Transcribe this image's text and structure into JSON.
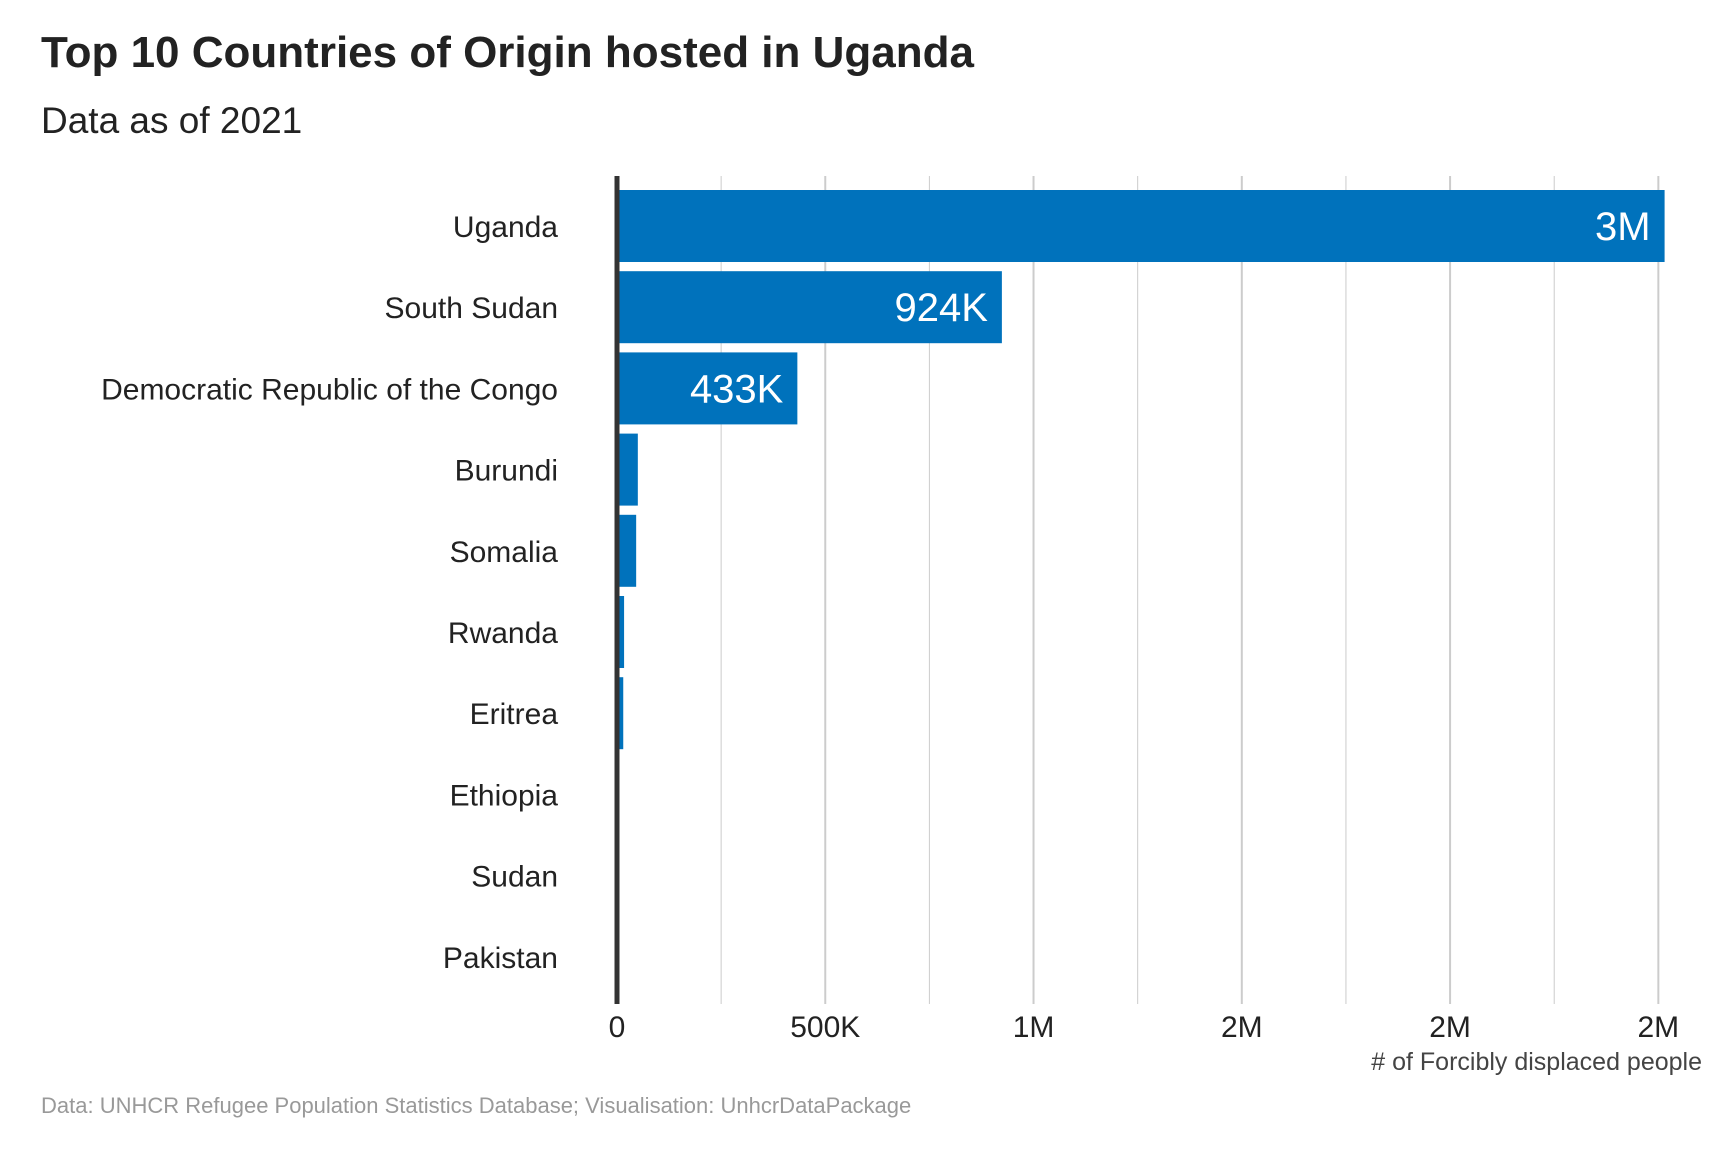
{
  "title": "Top 10 Countries of Origin hosted in Uganda",
  "subtitle": "Data as of 2021",
  "caption": "Data: UNHCR Refugee Population Statistics Database; Visualisation: UnhcrDataPackage",
  "colors": {
    "bar": "#0072bc",
    "grid": "#cccccc",
    "axis": "#333333"
  },
  "chart_data": {
    "type": "bar",
    "orientation": "horizontal",
    "categories": [
      "Uganda",
      "South Sudan",
      "Democratic Republic of the Congo",
      "Burundi",
      "Somalia",
      "Rwanda",
      "Eritrea",
      "Ethiopia",
      "Sudan",
      "Pakistan"
    ],
    "values": [
      2515000,
      924000,
      433000,
      50000,
      46000,
      17000,
      15000,
      3000,
      2000,
      1000
    ],
    "value_labels": [
      "3M",
      "924K",
      "433K",
      "",
      "",
      "",
      "",
      "",
      "",
      ""
    ],
    "xlabel": "# of Forcibly displaced people",
    "xlim": [
      0,
      2600000
    ],
    "x_ticks": [
      0,
      500000,
      1000000,
      1500000,
      2000000,
      2500000
    ],
    "x_tick_labels": [
      "0",
      "500K",
      "1M",
      "2M",
      "2M",
      "2M"
    ],
    "x_minor_ticks": [
      250000,
      750000,
      1250000,
      1750000,
      2250000
    ],
    "grid": true
  }
}
